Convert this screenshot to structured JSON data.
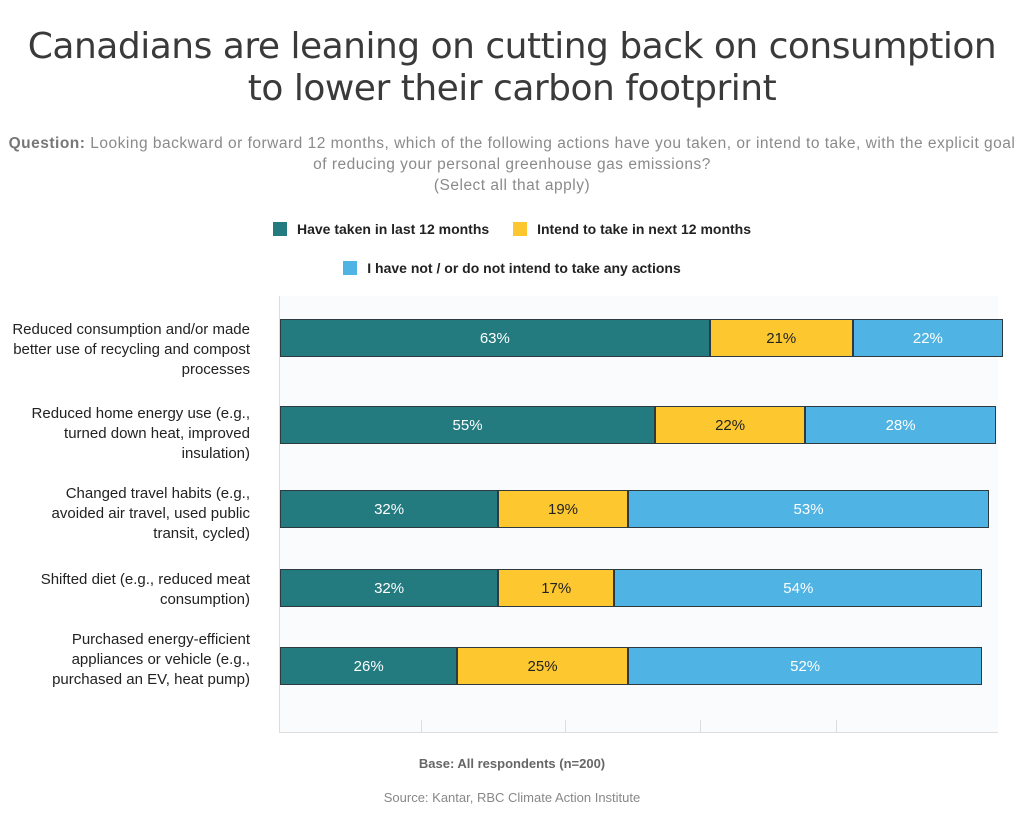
{
  "chart_data": {
    "type": "bar",
    "orientation": "horizontal",
    "stacked": true,
    "title": "Canadians are leaning on cutting back on consumption to lower their carbon footprint",
    "question_label": "Question:",
    "question_text": "Looking backward or forward 12 months, which of the following actions have you taken, or intend to take, with the explicit goal of reducing your personal greenhouse gas emissions?",
    "question_note": "(Select all that apply)",
    "categories": [
      "Reduced consumption and/or made better use of recycling and compost processes",
      "Reduced home energy use (e.g., turned down heat, improved insulation)",
      "Changed travel habits (e.g., avoided air travel, used public transit, cycled)",
      "Shifted diet (e.g., reduced meat consumption)",
      "Purchased energy-efficient appliances or vehicle (e.g., purchased an EV, heat pump)"
    ],
    "series": [
      {
        "name": "Have taken in last 12 months",
        "color": "#237b80",
        "text_color": "#ffffff",
        "values": [
          63,
          55,
          32,
          32,
          26
        ]
      },
      {
        "name": "Intend to take in next 12 months",
        "color": "#fdc82f",
        "text_color": "#222222",
        "values": [
          21,
          22,
          19,
          17,
          25
        ]
      },
      {
        "name": "I have not / or do not intend to take any actions",
        "color": "#4fb3e3",
        "text_color": "#ffffff",
        "values": [
          22,
          28,
          53,
          54,
          52
        ]
      }
    ],
    "value_suffix": "%",
    "legend_position": "top",
    "grid": false,
    "base_note": "Base: All respondents (n=200)",
    "source": "Source: Kantar, RBC Climate Action Institute"
  }
}
